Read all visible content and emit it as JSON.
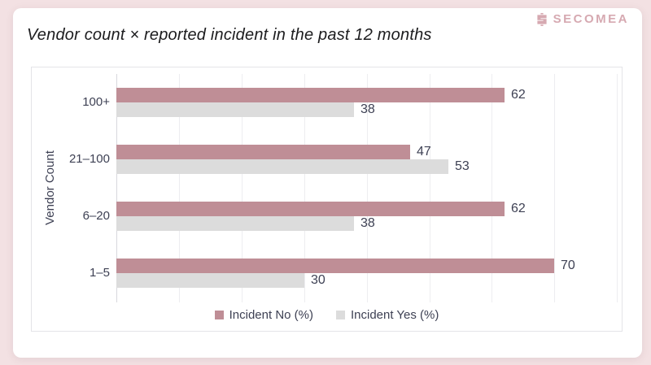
{
  "brand": {
    "name": "SECOMEA",
    "color": "#d6a9b1"
  },
  "title": "Vendor count × reported incident in the past 12 months",
  "chart_data": {
    "type": "bar",
    "orientation": "horizontal",
    "title": "Vendor count × reported incident in the past 12 months",
    "categories": [
      "100+",
      "21–100",
      "6–20",
      "1–5"
    ],
    "series": [
      {
        "name": "Incident No (%)",
        "color": "#bf8e96",
        "values": [
          62,
          47,
          62,
          70
        ]
      },
      {
        "name": "Incident Yes (%)",
        "color": "#dcdcdc",
        "values": [
          38,
          53,
          38,
          30
        ]
      }
    ],
    "xlabel": "",
    "ylabel": "Vendor Count",
    "xlim": [
      0,
      81
    ],
    "grid": true,
    "gridline_step": 10,
    "legend_position": "bottom",
    "data_labels": true
  }
}
